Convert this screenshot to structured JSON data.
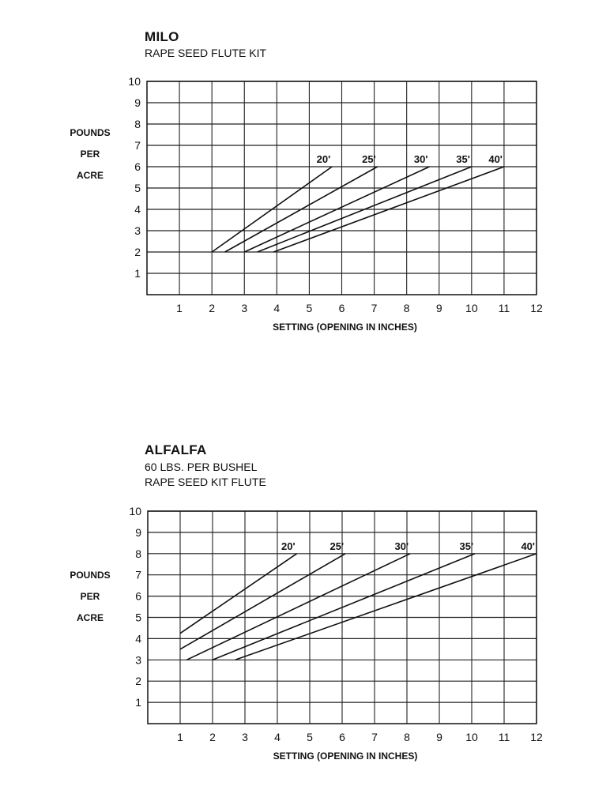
{
  "chart_data": [
    {
      "type": "line",
      "title": "MILO",
      "subtitle": [
        "RAPE SEED FLUTE KIT"
      ],
      "xlabel": "SETTING (OPENING IN INCHES)",
      "ylabel": [
        "POUNDS",
        "PER",
        "ACRE"
      ],
      "xlim": [
        0,
        12
      ],
      "ylim": [
        0,
        10
      ],
      "x_ticks": [
        "1",
        "2",
        "3",
        "4",
        "5",
        "6",
        "7",
        "8",
        "9",
        "10",
        "11",
        "12"
      ],
      "y_ticks": [
        "1",
        "2",
        "3",
        "4",
        "5",
        "6",
        "7",
        "8",
        "9",
        "10"
      ],
      "grid": true,
      "legend_position": "line-end labels",
      "series": [
        {
          "name": "20'",
          "points": [
            [
              2.0,
              2
            ],
            [
              5.7,
              6
            ]
          ]
        },
        {
          "name": "25'",
          "points": [
            [
              2.4,
              2
            ],
            [
              7.1,
              6
            ]
          ]
        },
        {
          "name": "30'",
          "points": [
            [
              3.0,
              2
            ],
            [
              8.7,
              6
            ]
          ]
        },
        {
          "name": "35'",
          "points": [
            [
              3.4,
              2
            ],
            [
              10.0,
              6
            ]
          ]
        },
        {
          "name": "40'",
          "points": [
            [
              3.9,
              2
            ],
            [
              11.0,
              6
            ]
          ]
        }
      ]
    },
    {
      "type": "line",
      "title": "ALFALFA",
      "subtitle": [
        "60 LBS. PER BUSHEL",
        "RAPE SEED KIT FLUTE"
      ],
      "xlabel": "SETTING (OPENING IN INCHES)",
      "ylabel": [
        "POUNDS",
        "PER",
        "ACRE"
      ],
      "xlim": [
        0,
        12
      ],
      "ylim": [
        0,
        10
      ],
      "x_ticks": [
        "1",
        "2",
        "3",
        "4",
        "5",
        "6",
        "7",
        "8",
        "9",
        "10",
        "11",
        "12"
      ],
      "y_ticks": [
        "1",
        "2",
        "3",
        "4",
        "5",
        "6",
        "7",
        "8",
        "9",
        "10"
      ],
      "grid": true,
      "legend_position": "line-end labels",
      "series": [
        {
          "name": "20'",
          "points": [
            [
              1.0,
              4.25
            ],
            [
              4.6,
              8
            ]
          ]
        },
        {
          "name": "25'",
          "points": [
            [
              1.0,
              3.5
            ],
            [
              6.1,
              8
            ]
          ]
        },
        {
          "name": "30'",
          "points": [
            [
              1.2,
              3
            ],
            [
              8.1,
              8
            ]
          ]
        },
        {
          "name": "35'",
          "points": [
            [
              2.0,
              3
            ],
            [
              10.1,
              8
            ]
          ]
        },
        {
          "name": "40'",
          "points": [
            [
              2.7,
              3
            ],
            [
              12.0,
              8
            ]
          ]
        }
      ]
    }
  ]
}
